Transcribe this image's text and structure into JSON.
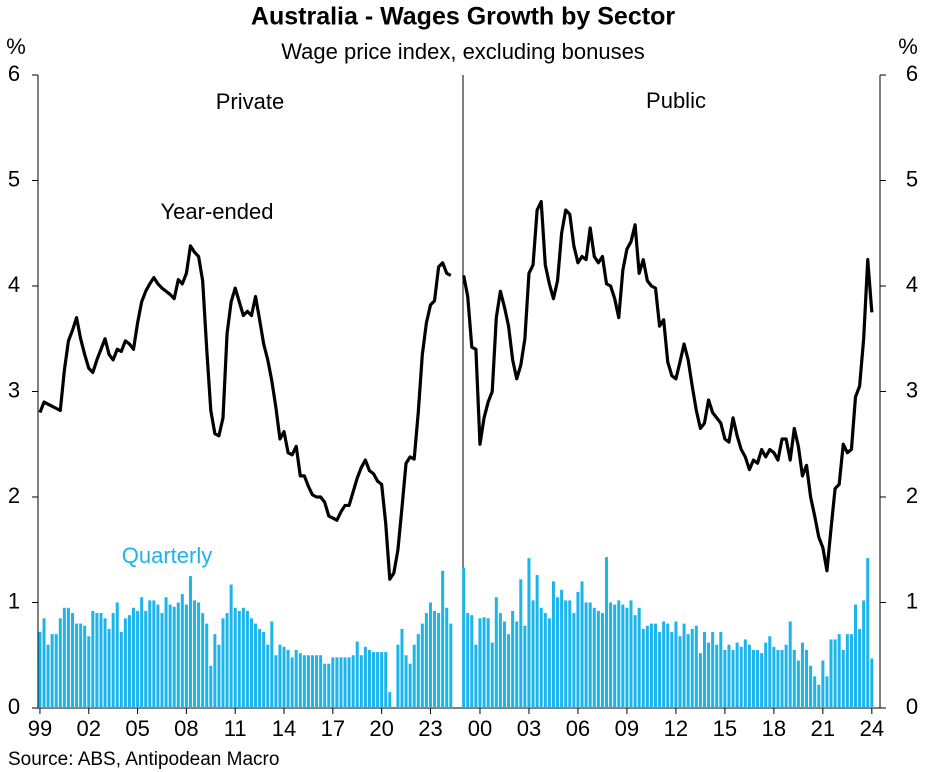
{
  "header": {
    "title": "Australia - Wages Growth by Sector",
    "subtitle": "Wage price index, excluding bonuses",
    "source": "Source: ABS, Antipodean Macro"
  },
  "chart_data": [
    {
      "type": "combo",
      "label": "Private",
      "y_label": "%",
      "ylim": [
        0,
        6
      ],
      "yticks": [
        0,
        1,
        2,
        3,
        4,
        5,
        6
      ],
      "xlim": [
        1998.88,
        2025.0
      ],
      "xticks": [
        {
          "value": 1999,
          "label": "99"
        },
        {
          "value": 2002,
          "label": "02"
        },
        {
          "value": 2005,
          "label": "05"
        },
        {
          "value": 2008,
          "label": "08"
        },
        {
          "value": 2011,
          "label": "11"
        },
        {
          "value": 2014,
          "label": "14"
        },
        {
          "value": 2017,
          "label": "17"
        },
        {
          "value": 2020,
          "label": "20"
        },
        {
          "value": 2023,
          "label": "23"
        }
      ],
      "x": [
        1999,
        1999.25,
        1999.5,
        1999.75,
        2000,
        2000.25,
        2000.5,
        2000.75,
        2001,
        2001.25,
        2001.5,
        2001.75,
        2002,
        2002.25,
        2002.5,
        2002.75,
        2003,
        2003.25,
        2003.5,
        2003.75,
        2004,
        2004.25,
        2004.5,
        2004.75,
        2005,
        2005.25,
        2005.5,
        2005.75,
        2006,
        2006.25,
        2006.5,
        2006.75,
        2007,
        2007.25,
        2007.5,
        2007.75,
        2008,
        2008.25,
        2008.5,
        2008.75,
        2009,
        2009.25,
        2009.5,
        2009.75,
        2010,
        2010.25,
        2010.5,
        2010.75,
        2011,
        2011.25,
        2011.5,
        2011.75,
        2012,
        2012.25,
        2012.5,
        2012.75,
        2013,
        2013.25,
        2013.5,
        2013.75,
        2014,
        2014.25,
        2014.5,
        2014.75,
        2015,
        2015.25,
        2015.5,
        2015.75,
        2016,
        2016.25,
        2016.5,
        2016.75,
        2017,
        2017.25,
        2017.5,
        2017.75,
        2018,
        2018.25,
        2018.5,
        2018.75,
        2019,
        2019.25,
        2019.5,
        2019.75,
        2020,
        2020.25,
        2020.5,
        2020.75,
        2021,
        2021.25,
        2021.5,
        2021.75,
        2022,
        2022.25,
        2022.5,
        2022.75,
        2023,
        2023.25,
        2023.5,
        2023.75,
        2024,
        2024.25
      ],
      "series": [
        {
          "name": "Year-ended",
          "type": "line",
          "color": "#000000",
          "values": [
            2.8,
            2.9,
            2.88,
            2.86,
            2.84,
            2.82,
            3.2,
            3.48,
            3.58,
            3.7,
            3.5,
            3.35,
            3.22,
            3.18,
            3.3,
            3.4,
            3.5,
            3.35,
            3.3,
            3.4,
            3.38,
            3.48,
            3.45,
            3.4,
            3.65,
            3.85,
            3.95,
            4.02,
            4.08,
            4.02,
            3.98,
            3.95,
            3.92,
            3.88,
            4.06,
            4.02,
            4.12,
            4.38,
            4.32,
            4.28,
            4.05,
            3.4,
            2.82,
            2.6,
            2.58,
            2.75,
            3.55,
            3.85,
            3.98,
            3.85,
            3.72,
            3.76,
            3.72,
            3.9,
            3.68,
            3.45,
            3.3,
            3.1,
            2.85,
            2.55,
            2.62,
            2.42,
            2.4,
            2.48,
            2.2,
            2.2,
            2.1,
            2.02,
            2.0,
            2.0,
            1.95,
            1.82,
            1.8,
            1.78,
            1.86,
            1.92,
            1.92,
            2.05,
            2.18,
            2.28,
            2.35,
            2.25,
            2.22,
            2.15,
            2.12,
            1.75,
            1.22,
            1.28,
            1.5,
            1.9,
            2.32,
            2.38,
            2.36,
            2.8,
            3.35,
            3.65,
            3.82,
            3.86,
            4.18,
            4.22,
            4.12,
            4.1
          ]
        },
        {
          "name": "Quarterly",
          "type": "bar",
          "color": "#1cb4ec",
          "values": [
            0.72,
            0.85,
            0.6,
            0.7,
            0.7,
            0.85,
            0.95,
            0.95,
            0.9,
            0.8,
            0.8,
            0.78,
            0.68,
            0.92,
            0.9,
            0.9,
            0.85,
            0.75,
            0.9,
            1.0,
            0.72,
            0.85,
            0.88,
            0.95,
            0.92,
            1.05,
            0.92,
            1.02,
            1.02,
            0.98,
            0.9,
            1.05,
            0.98,
            0.96,
            1.0,
            1.08,
            0.98,
            1.25,
            1.02,
            1.0,
            0.9,
            0.8,
            0.4,
            0.7,
            0.6,
            0.85,
            0.9,
            1.17,
            0.95,
            0.92,
            0.95,
            0.92,
            0.85,
            0.8,
            0.75,
            0.72,
            0.6,
            0.82,
            0.5,
            0.6,
            0.58,
            0.55,
            0.48,
            0.55,
            0.52,
            0.5,
            0.5,
            0.5,
            0.5,
            0.5,
            0.42,
            0.42,
            0.48,
            0.48,
            0.48,
            0.48,
            0.48,
            0.5,
            0.63,
            0.5,
            0.58,
            0.55,
            0.53,
            0.53,
            0.53,
            0.53,
            0.15,
            null,
            0.6,
            0.75,
            0.5,
            0.42,
            0.6,
            0.7,
            0.8,
            0.9,
            1.0,
            0.92,
            0.9,
            1.3,
            0.95,
            0.8
          ]
        }
      ]
    },
    {
      "type": "combo",
      "label": "Public",
      "y_label": "%",
      "ylim": [
        0,
        6
      ],
      "yticks": [
        0,
        1,
        2,
        3,
        4,
        5,
        6
      ],
      "xlim": [
        1998.96,
        2024.5
      ],
      "xticks": [
        {
          "value": 2000,
          "label": "00"
        },
        {
          "value": 2003,
          "label": "03"
        },
        {
          "value": 2006,
          "label": "06"
        },
        {
          "value": 2009,
          "label": "09"
        },
        {
          "value": 2012,
          "label": "12"
        },
        {
          "value": 2015,
          "label": "15"
        },
        {
          "value": 2018,
          "label": "18"
        },
        {
          "value": 2021,
          "label": "21"
        },
        {
          "value": 2024,
          "label": "24"
        }
      ],
      "x": [
        1999,
        1999.25,
        1999.5,
        1999.75,
        2000,
        2000.25,
        2000.5,
        2000.75,
        2001,
        2001.25,
        2001.5,
        2001.75,
        2002,
        2002.25,
        2002.5,
        2002.75,
        2003,
        2003.25,
        2003.5,
        2003.75,
        2004,
        2004.25,
        2004.5,
        2004.75,
        2005,
        2005.25,
        2005.5,
        2005.75,
        2006,
        2006.25,
        2006.5,
        2006.75,
        2007,
        2007.25,
        2007.5,
        2007.75,
        2008,
        2008.25,
        2008.5,
        2008.75,
        2009,
        2009.25,
        2009.5,
        2009.75,
        2010,
        2010.25,
        2010.5,
        2010.75,
        2011,
        2011.25,
        2011.5,
        2011.75,
        2012,
        2012.25,
        2012.5,
        2012.75,
        2013,
        2013.25,
        2013.5,
        2013.75,
        2014,
        2014.25,
        2014.5,
        2014.75,
        2015,
        2015.25,
        2015.5,
        2015.75,
        2016,
        2016.25,
        2016.5,
        2016.75,
        2017,
        2017.25,
        2017.5,
        2017.75,
        2018,
        2018.25,
        2018.5,
        2018.75,
        2019,
        2019.25,
        2019.5,
        2019.75,
        2020,
        2020.25,
        2020.5,
        2020.75,
        2021,
        2021.25,
        2021.5,
        2021.75,
        2022,
        2022.25,
        2022.5,
        2022.75,
        2023,
        2023.25,
        2023.5,
        2023.75,
        2024
      ],
      "series": [
        {
          "type": "line",
          "color": "#000000",
          "values": [
            4.1,
            3.9,
            3.42,
            3.4,
            2.5,
            2.75,
            2.9,
            3.0,
            3.7,
            3.95,
            3.8,
            3.62,
            3.3,
            3.12,
            3.25,
            3.5,
            4.12,
            4.2,
            4.72,
            4.8,
            4.2,
            4.02,
            3.88,
            4.05,
            4.5,
            4.72,
            4.68,
            4.38,
            4.22,
            4.28,
            4.25,
            4.55,
            4.28,
            4.22,
            4.28,
            4.02,
            4.0,
            3.88,
            3.7,
            4.15,
            4.35,
            4.42,
            4.58,
            4.12,
            4.25,
            4.05,
            4.0,
            3.98,
            3.62,
            3.68,
            3.28,
            3.15,
            3.12,
            3.28,
            3.45,
            3.3,
            3.05,
            2.82,
            2.65,
            2.7,
            2.92,
            2.8,
            2.75,
            2.7,
            2.55,
            2.52,
            2.75,
            2.58,
            2.45,
            2.38,
            2.26,
            2.35,
            2.32,
            2.45,
            2.38,
            2.45,
            2.42,
            2.35,
            2.55,
            2.55,
            2.35,
            2.65,
            2.48,
            2.2,
            2.3,
            2.0,
            1.82,
            1.62,
            1.52,
            1.3,
            1.7,
            2.08,
            2.12,
            2.5,
            2.42,
            2.45,
            2.95,
            3.05,
            3.5,
            4.25,
            3.75
          ]
        },
        {
          "type": "bar",
          "color": "#1cb4ec",
          "values": [
            1.33,
            0.9,
            0.88,
            0.6,
            0.85,
            0.86,
            0.85,
            0.62,
            1.05,
            0.9,
            0.82,
            0.7,
            0.92,
            0.82,
            1.22,
            0.78,
            1.42,
            1.02,
            1.26,
            0.95,
            0.9,
            0.85,
            1.2,
            1.05,
            1.12,
            1.02,
            1.02,
            0.9,
            1.1,
            1.2,
            1.0,
            1.0,
            0.95,
            0.92,
            0.9,
            1.43,
            1.0,
            0.98,
            1.02,
            0.98,
            0.95,
            1.02,
            0.88,
            0.95,
            0.75,
            0.78,
            0.8,
            0.8,
            0.72,
            0.82,
            0.8,
            0.72,
            0.82,
            0.68,
            0.8,
            0.7,
            0.75,
            0.78,
            0.52,
            0.72,
            0.62,
            0.72,
            0.6,
            0.72,
            0.55,
            0.6,
            0.55,
            0.62,
            0.58,
            0.65,
            0.6,
            0.55,
            0.55,
            0.52,
            0.62,
            0.68,
            0.58,
            0.55,
            0.55,
            0.6,
            0.82,
            0.55,
            0.45,
            0.62,
            0.55,
            0.4,
            0.3,
            0.22,
            0.45,
            0.3,
            0.65,
            0.65,
            0.7,
            0.55,
            0.7,
            0.7,
            0.98,
            0.75,
            1.02,
            1.42,
            0.47
          ]
        }
      ]
    }
  ]
}
